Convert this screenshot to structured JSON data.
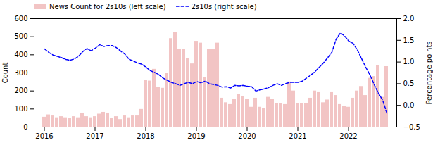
{
  "chart_data": {
    "type": "bar",
    "ylabel": "Count",
    "y2label": "Percentage points",
    "categories": [
      "2016",
      null,
      null,
      null,
      null,
      null,
      null,
      null,
      null,
      null,
      null,
      null,
      "2017",
      null,
      null,
      null,
      null,
      null,
      null,
      null,
      null,
      null,
      null,
      null,
      "2018",
      null,
      null,
      null,
      null,
      null,
      null,
      null,
      null,
      null,
      null,
      null,
      "2019",
      null,
      null,
      null,
      null,
      null,
      null,
      null,
      null,
      null,
      null,
      null,
      "2020",
      null,
      null,
      null,
      null,
      null,
      null,
      null,
      null,
      null,
      null,
      null,
      "2021",
      null,
      null,
      null,
      null,
      null,
      null,
      null,
      null,
      null,
      null,
      null,
      "2022",
      null,
      null,
      null,
      null,
      null,
      null,
      null,
      null,
      null
    ],
    "series": [
      {
        "name": "News Count for 2s10s (left scale)",
        "type": "bar",
        "color": "#f2c4c4",
        "values": [
          55,
          68,
          62,
          52,
          58,
          52,
          48,
          58,
          52,
          78,
          58,
          52,
          58,
          72,
          82,
          78,
          48,
          58,
          42,
          62,
          52,
          62,
          62,
          98,
          260,
          255,
          320,
          220,
          215,
          300,
          490,
          525,
          430,
          430,
          380,
          350,
          475,
          465,
          275,
          430,
          430,
          465,
          160,
          135,
          125,
          155,
          180,
          170,
          155,
          110,
          160,
          110,
          105,
          165,
          155,
          130,
          130,
          125,
          250,
          200,
          130,
          130,
          130,
          160,
          200,
          195,
          135,
          150,
          195,
          175,
          125,
          115,
          110,
          160,
          200,
          225,
          175,
          270,
          280,
          340,
          165,
          335
        ]
      },
      {
        "name": "2s10s (right scale)",
        "type": "line",
        "color": "blue",
        "line_style": "dashed",
        "axis": "y2",
        "values": [
          1.3,
          1.22,
          1.16,
          1.13,
          1.1,
          1.06,
          1.04,
          1.07,
          1.13,
          1.24,
          1.31,
          1.26,
          1.32,
          1.4,
          1.36,
          1.38,
          1.38,
          1.33,
          1.25,
          1.18,
          1.06,
          1.02,
          0.98,
          0.95,
          0.88,
          0.8,
          0.76,
          0.71,
          0.63,
          0.58,
          0.53,
          0.5,
          0.46,
          0.5,
          0.53,
          0.5,
          0.55,
          0.52,
          0.56,
          0.5,
          0.48,
          0.46,
          0.42,
          0.43,
          0.4,
          0.46,
          0.45,
          0.46,
          0.44,
          0.43,
          0.33,
          0.36,
          0.38,
          0.41,
          0.46,
          0.5,
          0.46,
          0.5,
          0.53,
          0.53,
          0.53,
          0.56,
          0.63,
          0.7,
          0.78,
          0.88,
          0.98,
          1.1,
          1.23,
          1.53,
          1.67,
          1.6,
          1.48,
          1.43,
          1.28,
          1.08,
          0.88,
          0.7,
          0.48,
          0.28,
          0.12,
          -0.18
        ]
      }
    ],
    "ylim": [
      0,
      600
    ],
    "yticks": [
      0,
      100,
      200,
      300,
      400,
      500,
      600
    ],
    "y2lim": [
      -0.5,
      2.0
    ],
    "y2ticks": [
      {
        "value": -0.5,
        "label": "−0.5"
      },
      {
        "value": 0,
        "label": "0.0"
      },
      {
        "value": 0.5,
        "label": "0.5"
      },
      {
        "value": 1,
        "label": "1.0"
      },
      {
        "value": 1.5,
        "label": "1.5"
      },
      {
        "value": 2,
        "label": "2.0"
      }
    ],
    "grid": false,
    "legend": "upper left"
  }
}
